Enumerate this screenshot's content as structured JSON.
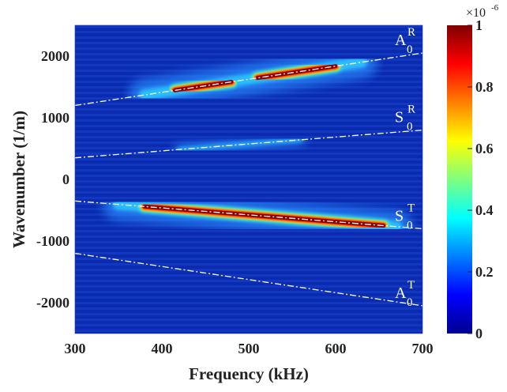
{
  "chart_data": {
    "type": "heatmap",
    "xlabel": "Frequency (kHz)",
    "ylabel": "Wavenumber (1/m)",
    "xlim": [
      300,
      700
    ],
    "ylim": [
      -2500,
      2500
    ],
    "xticks": [
      "300",
      "400",
      "500",
      "600",
      "700"
    ],
    "yticks": [
      "2000",
      "1000",
      "0",
      "-1000",
      "-2000"
    ],
    "xtick_values": [
      300,
      400,
      500,
      600,
      700
    ],
    "ytick_values": [
      2000,
      1000,
      0,
      -1000,
      -2000
    ],
    "colormap": "jet",
    "colorbar": {
      "range": [
        0,
        1
      ],
      "ticks": [
        "0",
        "0.2",
        "0.4",
        "0.6",
        "0.8",
        "1"
      ],
      "tick_values": [
        0,
        0.2,
        0.4,
        0.6,
        0.8,
        1
      ],
      "exponent_label": "×10",
      "exponent": "-6"
    },
    "modes": [
      {
        "base": "A",
        "sub": "0",
        "sup": "R",
        "line": [
          [
            300,
            1200
          ],
          [
            700,
            2050
          ]
        ],
        "bright_segments": [
          [
            415,
            480
          ],
          [
            510,
            600
          ]
        ],
        "glow_segments": [
          [
            380,
            630
          ]
        ],
        "intensity": 1.0
      },
      {
        "base": "S",
        "sub": "0",
        "sup": "R",
        "line": [
          [
            300,
            350
          ],
          [
            700,
            800
          ]
        ],
        "bright_segments": [],
        "glow_segments": [
          [
            420,
            560
          ]
        ],
        "intensity": 0.3
      },
      {
        "base": "S",
        "sub": "0",
        "sup": "T",
        "line": [
          [
            300,
            -350
          ],
          [
            700,
            -800
          ]
        ],
        "bright_segments": [
          [
            380,
            655
          ]
        ],
        "glow_segments": [
          [
            350,
            670
          ]
        ],
        "intensity": 1.0
      },
      {
        "base": "A",
        "sub": "0",
        "sup": "T",
        "line": [
          [
            300,
            -1200
          ],
          [
            700,
            -2050
          ]
        ],
        "bright_segments": [],
        "glow_segments": [],
        "intensity": 0.1
      }
    ],
    "colors": {
      "background": "#0b2ab0",
      "line": "#ffffff"
    }
  }
}
